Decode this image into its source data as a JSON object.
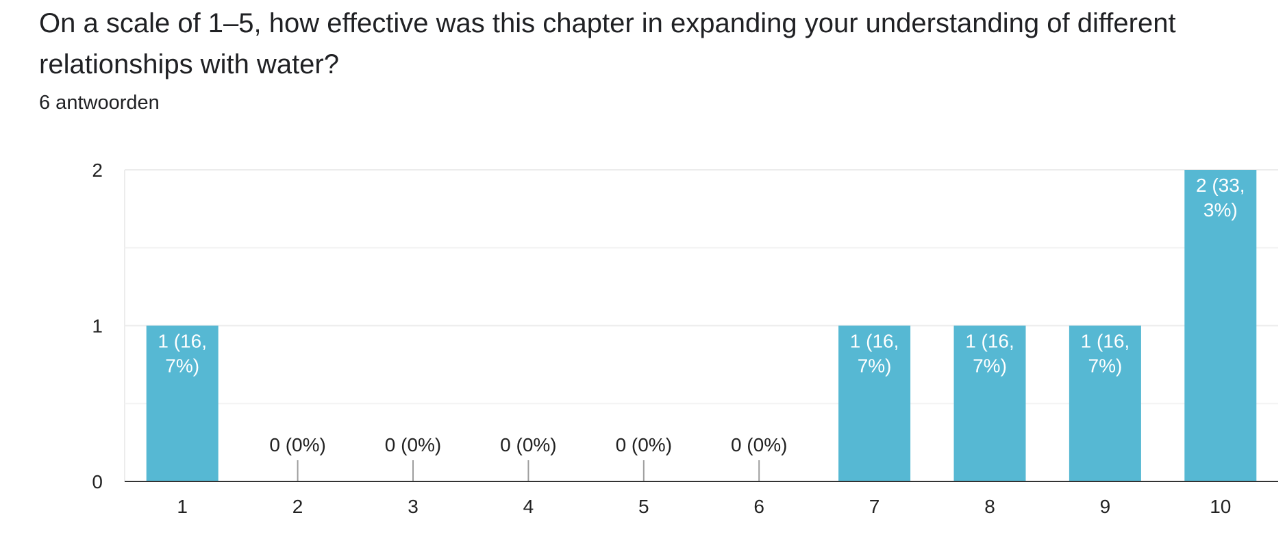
{
  "question": {
    "title": "On a scale of 1–5, how effective was this chapter in expanding your understanding of different relationships with water?",
    "response_count": "6 antwoorden"
  },
  "colors": {
    "bar": "#56b8d3",
    "gridline": "#ececec",
    "gridline_minor": "#f3f3f3",
    "axis": "#333333",
    "zero_tick": "#9e9e9e"
  },
  "chart_data": {
    "type": "bar",
    "categories": [
      "1",
      "2",
      "3",
      "4",
      "5",
      "6",
      "7",
      "8",
      "9",
      "10"
    ],
    "values": [
      1,
      0,
      0,
      0,
      0,
      0,
      1,
      1,
      1,
      2
    ],
    "data_labels": [
      [
        "1 (16,",
        "7%)"
      ],
      [
        "0 (0%)"
      ],
      [
        "0 (0%)"
      ],
      [
        "0 (0%)"
      ],
      [
        "0 (0%)"
      ],
      [
        "0 (0%)"
      ],
      [
        "1 (16,",
        "7%)"
      ],
      [
        "1 (16,",
        "7%)"
      ],
      [
        "1 (16,",
        "7%)"
      ],
      [
        "2 (33,",
        "3%)"
      ]
    ],
    "y_ticks": [
      0,
      1,
      2
    ],
    "ylim": [
      0,
      2
    ],
    "grid": true,
    "legend": "none"
  }
}
